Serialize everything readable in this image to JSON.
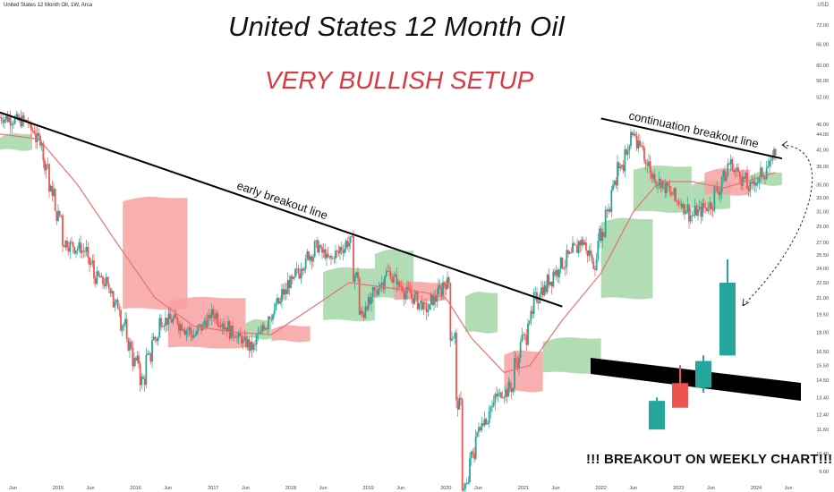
{
  "header": {
    "ticker": "United States 12 Month Oil, 1W, Arca",
    "currency": "USD"
  },
  "chart_data": {
    "type": "candlestick",
    "title": "United States 12 Month Oil",
    "subtitle": "VERY BULLISH SETUP",
    "yscale": "log",
    "ylim": [
      9.0,
      78.0
    ],
    "y_ticks": [
      "72.00",
      "66.00",
      "60.00",
      "56.00",
      "52.00",
      "46.00",
      "44.00",
      "41.00",
      "38.00",
      "35.00",
      "33.00",
      "31.00",
      "29.00",
      "27.00",
      "25.50",
      "24.00",
      "22.50",
      "21.00",
      "19.50",
      "18.00",
      "16.50",
      "15.50",
      "14.50",
      "13.40",
      "12.40",
      "11.60",
      "10.40",
      "9.60"
    ],
    "x_ticks": [
      "Jun",
      "2015",
      "Jun",
      "2016",
      "Jun",
      "2017",
      "Jun",
      "2018",
      "Jun",
      "2019",
      "Jun",
      "2020",
      "Jun",
      "2021",
      "Jun",
      "2022",
      "Jun",
      "2023",
      "Jun",
      "2024",
      "Jun"
    ],
    "annotations": {
      "early_line": "early breakout line",
      "continuation_line": "continuation breakout line",
      "breakout_text": "!!! BREAKOUT ON WEEKLY CHART!!!"
    },
    "trendlines": [
      {
        "name": "early breakout line",
        "from": {
          "x": "2014-04",
          "y": 48.5
        },
        "to": {
          "x": "2021-07",
          "y": 20.2
        }
      },
      {
        "name": "continuation breakout line",
        "from": {
          "x": "2022-01",
          "y": 47.2
        },
        "to": {
          "x": "2024-05",
          "y": 39.4
        }
      }
    ],
    "price_path": [
      [
        "2014-04",
        47.5
      ],
      [
        "2014-08",
        46.5
      ],
      [
        "2014-10",
        43.0
      ],
      [
        "2014-12",
        34.0
      ],
      [
        "2015-02",
        27.0
      ],
      [
        "2015-05",
        26.0
      ],
      [
        "2015-07",
        23.0
      ],
      [
        "2015-09",
        22.0
      ],
      [
        "2015-12",
        17.0
      ],
      [
        "2016-02",
        14.5
      ],
      [
        "2016-05",
        19.0
      ],
      [
        "2016-07",
        19.0
      ],
      [
        "2016-10",
        17.8
      ],
      [
        "2017-01",
        19.5
      ],
      [
        "2017-05",
        17.5
      ],
      [
        "2017-07",
        16.8
      ],
      [
        "2017-10",
        19.5
      ],
      [
        "2018-01",
        22.5
      ],
      [
        "2018-05",
        26.5
      ],
      [
        "2018-07",
        25.0
      ],
      [
        "2018-10",
        27.0
      ],
      [
        "2018-12",
        19.5
      ],
      [
        "2019-04",
        23.5
      ],
      [
        "2019-07",
        21.5
      ],
      [
        "2019-10",
        20.0
      ],
      [
        "2020-01",
        22.5
      ],
      [
        "2020-03",
        13.0
      ],
      [
        "2020-04",
        9.0
      ],
      [
        "2020-06",
        11.5
      ],
      [
        "2020-09",
        13.5
      ],
      [
        "2020-11",
        14.0
      ],
      [
        "2021-01",
        17.5
      ],
      [
        "2021-03",
        21.0
      ],
      [
        "2021-07",
        24.5
      ],
      [
        "2021-10",
        27.0
      ],
      [
        "2021-12",
        24.5
      ],
      [
        "2022-03",
        35.0
      ],
      [
        "2022-06",
        44.0
      ],
      [
        "2022-09",
        36.5
      ],
      [
        "2022-12",
        33.5
      ],
      [
        "2023-03",
        30.5
      ],
      [
        "2023-06",
        32.0
      ],
      [
        "2023-09",
        38.5
      ],
      [
        "2023-12",
        34.5
      ],
      [
        "2024-03",
        38.0
      ],
      [
        "2024-04",
        40.5
      ]
    ],
    "moving_average": [
      [
        "2014-04",
        44.0
      ],
      [
        "2014-10",
        43.0
      ],
      [
        "2015-04",
        35.0
      ],
      [
        "2015-10",
        27.0
      ],
      [
        "2016-04",
        21.0
      ],
      [
        "2016-10",
        18.5
      ],
      [
        "2017-04",
        18.0
      ],
      [
        "2017-10",
        17.8
      ],
      [
        "2018-04",
        20.0
      ],
      [
        "2018-10",
        22.5
      ],
      [
        "2019-04",
        22.0
      ],
      [
        "2019-10",
        21.5
      ],
      [
        "2020-01",
        21.0
      ],
      [
        "2020-05",
        17.5
      ],
      [
        "2020-10",
        15.0
      ],
      [
        "2021-02",
        15.5
      ],
      [
        "2021-07",
        19.0
      ],
      [
        "2022-01",
        23.5
      ],
      [
        "2022-06",
        31.0
      ],
      [
        "2022-10",
        35.5
      ],
      [
        "2023-03",
        35.5
      ],
      [
        "2023-08",
        34.5
      ],
      [
        "2024-01",
        36.0
      ],
      [
        "2024-04",
        37.0
      ]
    ],
    "inset_candles": [
      {
        "dir": "up",
        "open": 11.6,
        "close": 13.2,
        "high": 13.4,
        "low": 11.6
      },
      {
        "dir": "down",
        "open": 14.3,
        "close": 12.8,
        "high": 15.5,
        "low": 12.8
      },
      {
        "dir": "up",
        "open": 14.0,
        "close": 15.8,
        "high": 16.2,
        "low": 13.7
      },
      {
        "dir": "up",
        "open": 16.2,
        "close": 22.5,
        "high": 25.0,
        "low": 16.2
      }
    ],
    "colors": {
      "up": "#26a69a",
      "down": "#ef5350",
      "ma": "#e57373",
      "cloud_bull": "#a5d6a7",
      "cloud_bear": "#f7a1a1",
      "headline_red": "#d83a44"
    }
  }
}
